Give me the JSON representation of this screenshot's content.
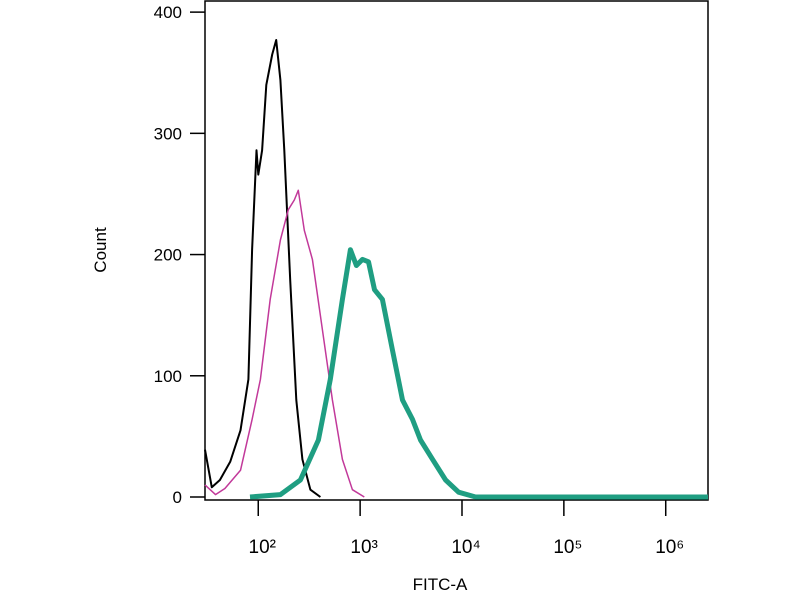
{
  "chart_data": {
    "type": "line",
    "xlabel": "FITC-A",
    "ylabel": "Count",
    "xscale": "log",
    "xlim": [
      30,
      2600000
    ],
    "ylim": [
      0,
      410
    ],
    "xticks": [
      {
        "value": 100,
        "label": "10²"
      },
      {
        "value": 1000,
        "label": "10³"
      },
      {
        "value": 10000,
        "label": "10⁴"
      },
      {
        "value": 100000,
        "label": "10⁵"
      },
      {
        "value": 1000000,
        "label": "10⁶"
      }
    ],
    "yticks": [
      0,
      100,
      200,
      300,
      400
    ],
    "series": [
      {
        "color": "#000000",
        "width": 2,
        "x": [
          30,
          35,
          42,
          53,
          67,
          80,
          87,
          96,
          100,
          109,
          120,
          137,
          150,
          165,
          180,
          206,
          236,
          271,
          325,
          407
        ],
        "values": [
          39,
          8,
          14,
          29,
          55,
          97,
          204,
          286,
          266,
          286,
          340,
          365,
          377,
          344,
          286,
          179,
          80,
          31,
          6,
          0
        ]
      },
      {
        "color": "#c2399a",
        "width": 1.5,
        "x": [
          30,
          38,
          47,
          67,
          87,
          105,
          131,
          165,
          197,
          226,
          247,
          283,
          340,
          426,
          534,
          670,
          840,
          1100
        ],
        "values": [
          10,
          2,
          7,
          22,
          64,
          97,
          163,
          212,
          237,
          245,
          253,
          220,
          196,
          138,
          80,
          31,
          6,
          0
        ]
      },
      {
        "color": "#1f9e82",
        "width": 5,
        "x": [
          83,
          165,
          259,
          389,
          510,
          670,
          803,
          920,
          1055,
          1208,
          1384,
          1656,
          2078,
          2608,
          3267,
          3917,
          5140,
          6900,
          9270,
          13600,
          2600000
        ],
        "values": [
          0,
          2,
          14,
          47,
          97,
          163,
          204,
          191,
          196,
          194,
          171,
          163,
          121,
          80,
          64,
          47,
          31,
          14,
          4,
          0,
          0
        ]
      }
    ]
  }
}
